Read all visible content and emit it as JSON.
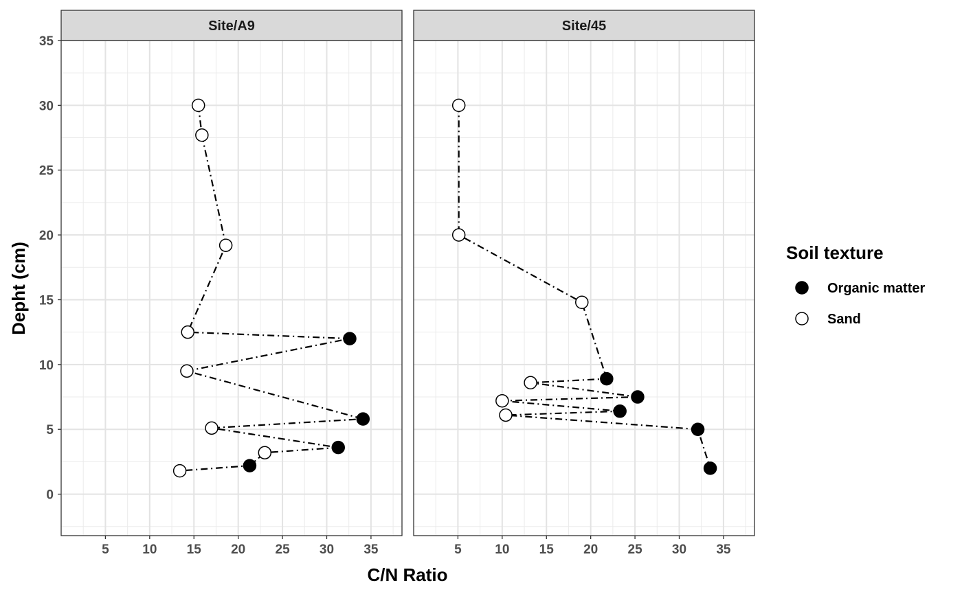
{
  "chart_data": {
    "type": "scatter",
    "xlabel": "C/N Ratio",
    "ylabel": "Depht (cm)",
    "xlim": [
      0,
      38.5
    ],
    "ylim": [
      -3.2,
      35
    ],
    "x_ticks": [
      5,
      10,
      15,
      20,
      25,
      30,
      35
    ],
    "y_ticks": [
      0,
      5,
      10,
      15,
      20,
      25,
      30,
      35
    ],
    "grid": true,
    "line_style": "dash-dot",
    "legend": {
      "title": "Soil texture",
      "position": "right",
      "entries": [
        {
          "label": "Organic matter",
          "fill": "#000000"
        },
        {
          "label": "Sand",
          "fill": "#ffffff"
        }
      ]
    },
    "panels": [
      {
        "title": "Site/A9",
        "points": [
          {
            "x": 15.5,
            "y": 30.0,
            "texture": "Sand"
          },
          {
            "x": 15.9,
            "y": 27.7,
            "texture": "Sand"
          },
          {
            "x": 18.6,
            "y": 19.2,
            "texture": "Sand"
          },
          {
            "x": 14.3,
            "y": 12.5,
            "texture": "Sand"
          },
          {
            "x": 32.6,
            "y": 12.0,
            "texture": "Organic matter"
          },
          {
            "x": 14.2,
            "y": 9.5,
            "texture": "Sand"
          },
          {
            "x": 34.1,
            "y": 5.8,
            "texture": "Organic matter"
          },
          {
            "x": 17.0,
            "y": 5.1,
            "texture": "Sand"
          },
          {
            "x": 31.3,
            "y": 3.6,
            "texture": "Organic matter"
          },
          {
            "x": 23.0,
            "y": 3.2,
            "texture": "Sand"
          },
          {
            "x": 21.3,
            "y": 2.2,
            "texture": "Organic matter"
          },
          {
            "x": 13.4,
            "y": 1.8,
            "texture": "Sand"
          }
        ]
      },
      {
        "title": "Site/45",
        "points": [
          {
            "x": 5.1,
            "y": 30.0,
            "texture": "Sand"
          },
          {
            "x": 5.1,
            "y": 20.0,
            "texture": "Sand"
          },
          {
            "x": 19.0,
            "y": 14.8,
            "texture": "Sand"
          },
          {
            "x": 21.8,
            "y": 8.9,
            "texture": "Organic matter"
          },
          {
            "x": 13.2,
            "y": 8.6,
            "texture": "Sand"
          },
          {
            "x": 25.3,
            "y": 7.5,
            "texture": "Organic matter"
          },
          {
            "x": 10.0,
            "y": 7.2,
            "texture": "Sand"
          },
          {
            "x": 23.3,
            "y": 6.4,
            "texture": "Organic matter"
          },
          {
            "x": 10.4,
            "y": 6.1,
            "texture": "Sand"
          },
          {
            "x": 32.1,
            "y": 5.0,
            "texture": "Organic matter"
          },
          {
            "x": 33.5,
            "y": 2.0,
            "texture": "Organic matter"
          }
        ]
      }
    ]
  }
}
